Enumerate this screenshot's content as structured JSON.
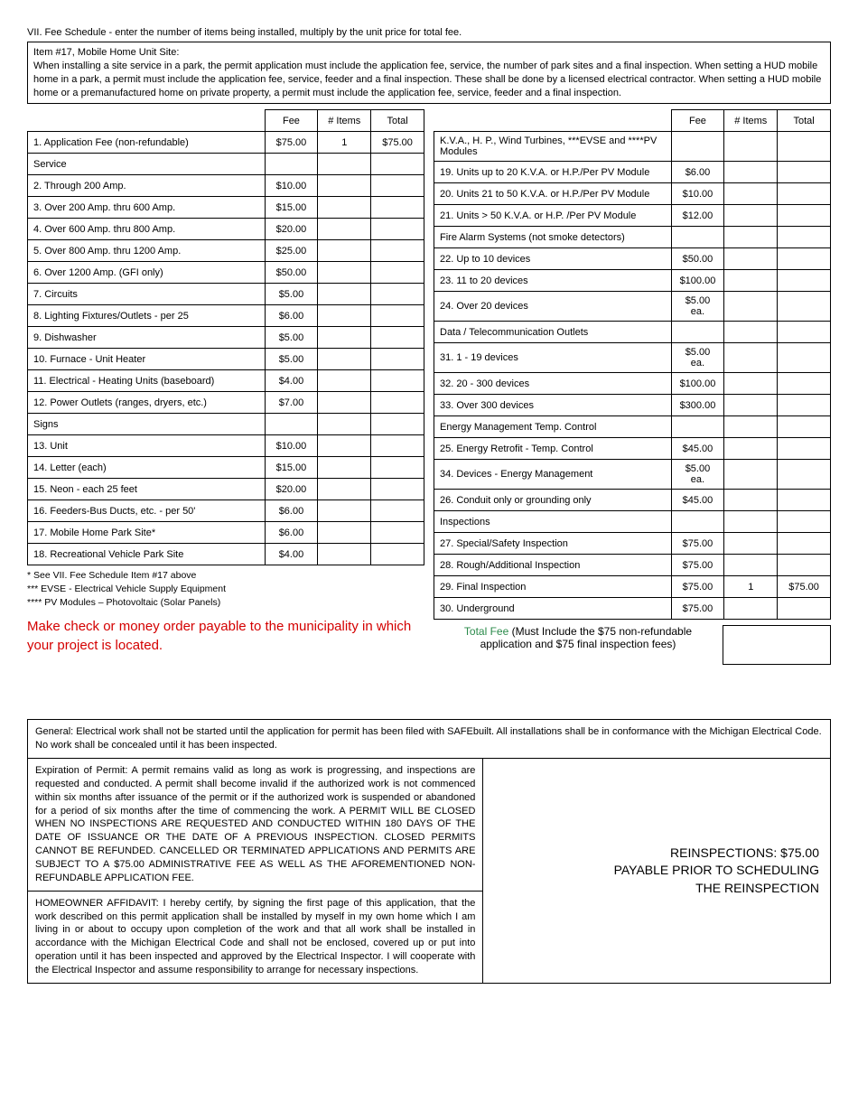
{
  "header": {
    "section_title": "VII. Fee Schedule - enter the number of items being installed, multiply by the unit price for total fee.",
    "item17_title": "Item #17, Mobile Home Unit Site:",
    "item17_body": "When installing a site service in a park, the permit application must include the application fee, service, the number of park sites and a final inspection. When setting a HUD mobile home in a park, a permit must include the application fee, service, feeder and a final inspection.  These shall be done by a licensed electrical contractor.  When setting a HUD mobile home or a premanufactured home on private property, a permit must include the application fee, service, feeder and a final inspection."
  },
  "table_headers": {
    "fee": "Fee",
    "items": "# Items",
    "total": "Total"
  },
  "left_rows": [
    {
      "label": "1. Application Fee (non-refundable)",
      "fee": "$75.00",
      "items": "1",
      "total": "$75.00"
    },
    {
      "label": "Service",
      "fee": "",
      "items": "",
      "total": ""
    },
    {
      "label": "2. Through 200 Amp.",
      "fee": "$10.00",
      "items": "",
      "total": ""
    },
    {
      "label": "3. Over 200 Amp. thru 600 Amp.",
      "fee": "$15.00",
      "items": "",
      "total": ""
    },
    {
      "label": "4. Over 600 Amp. thru 800 Amp.",
      "fee": "$20.00",
      "items": "",
      "total": ""
    },
    {
      "label": "5. Over 800 Amp. thru 1200 Amp.",
      "fee": "$25.00",
      "items": "",
      "total": ""
    },
    {
      "label": "6. Over 1200 Amp. (GFI only)",
      "fee": "$50.00",
      "items": "",
      "total": ""
    },
    {
      "label": "7. Circuits",
      "fee": "$5.00",
      "items": "",
      "total": ""
    },
    {
      "label": "8. Lighting Fixtures/Outlets - per 25",
      "fee": "$6.00",
      "items": "",
      "total": ""
    },
    {
      "label": "9. Dishwasher",
      "fee": "$5.00",
      "items": "",
      "total": ""
    },
    {
      "label": "10. Furnace - Unit Heater",
      "fee": "$5.00",
      "items": "",
      "total": ""
    },
    {
      "label": "11. Electrical - Heating Units (baseboard)",
      "fee": "$4.00",
      "items": "",
      "total": ""
    },
    {
      "label": "12. Power Outlets (ranges, dryers, etc.)",
      "fee": "$7.00",
      "items": "",
      "total": ""
    },
    {
      "label": "Signs",
      "fee": "",
      "items": "",
      "total": ""
    },
    {
      "label": "13. Unit",
      "fee": "$10.00",
      "items": "",
      "total": ""
    },
    {
      "label": "14. Letter (each)",
      "fee": "$15.00",
      "items": "",
      "total": ""
    },
    {
      "label": "15. Neon - each 25 feet",
      "fee": "$20.00",
      "items": "",
      "total": ""
    },
    {
      "label": "16. Feeders-Bus Ducts, etc. - per 50'",
      "fee": "$6.00",
      "items": "",
      "total": ""
    },
    {
      "label": "17. Mobile Home Park Site*",
      "fee": "$6.00",
      "items": "",
      "total": ""
    },
    {
      "label": "18. Recreational Vehicle Park Site",
      "fee": "$4.00",
      "items": "",
      "total": ""
    }
  ],
  "right_rows": [
    {
      "label": "K.V.A., H. P., Wind Turbines, ***EVSE and ****PV Modules",
      "fee": "",
      "items": "",
      "total": ""
    },
    {
      "label": "19. Units up to 20 K.V.A. or H.P./Per PV Module",
      "fee": "$6.00",
      "items": "",
      "total": ""
    },
    {
      "label": "20. Units 21 to 50 K.V.A. or H.P./Per PV Module",
      "fee": "$10.00",
      "items": "",
      "total": ""
    },
    {
      "label": "21. Units > 50 K.V.A. or H.P. /Per PV Module",
      "fee": "$12.00",
      "items": "",
      "total": ""
    },
    {
      "label": "Fire Alarm Systems (not smoke detectors)",
      "fee": "",
      "items": "",
      "total": "",
      "sub": true
    },
    {
      "label": "22. Up to 10 devices",
      "fee": "$50.00",
      "items": "",
      "total": ""
    },
    {
      "label": "23. 11 to 20 devices",
      "fee": "$100.00",
      "items": "",
      "total": ""
    },
    {
      "label": "24. Over 20 devices",
      "fee": "$5.00 ea.",
      "items": "",
      "total": ""
    },
    {
      "label": "Data / Telecommunication Outlets",
      "fee": "",
      "items": "",
      "total": ""
    },
    {
      "label": "31. 1 - 19 devices",
      "fee": "$5.00 ea.",
      "items": "",
      "total": ""
    },
    {
      "label": "32. 20 - 300 devices",
      "fee": "$100.00",
      "items": "",
      "total": ""
    },
    {
      "label": "33. Over 300 devices",
      "fee": "$300.00",
      "items": "",
      "total": ""
    },
    {
      "label": "Energy Management Temp. Control",
      "fee": "",
      "items": "",
      "total": ""
    },
    {
      "label": "25. Energy Retrofit - Temp. Control",
      "fee": "$45.00",
      "items": "",
      "total": ""
    },
    {
      "label": "34. Devices - Energy Management",
      "fee": "$5.00 ea.",
      "items": "",
      "total": ""
    },
    {
      "label": "26. Conduit only or grounding only",
      "fee": "$45.00",
      "items": "",
      "total": ""
    },
    {
      "label": "Inspections",
      "fee": "",
      "items": "",
      "total": ""
    },
    {
      "label": "27. Special/Safety Inspection",
      "fee": "$75.00",
      "items": "",
      "total": ""
    },
    {
      "label": "28. Rough/Additional Inspection",
      "fee": "$75.00",
      "items": "",
      "total": ""
    },
    {
      "label": "29. Final Inspection",
      "fee": "$75.00",
      "items": "1",
      "total": "$75.00"
    },
    {
      "label": "30. Underground",
      "fee": "$75.00",
      "items": "",
      "total": ""
    }
  ],
  "footnotes": {
    "l1": "*       See VII. Fee Schedule Item #17 above",
    "l2": "*** EVSE - Electrical Vehicle Supply Equipment",
    "l3": "**** PV Modules – Photovoltaic (Solar Panels)"
  },
  "payable": "Make check or money order payable to the municipality in which your project is located.",
  "total_fee": {
    "green": "Total Fee",
    "rest": " (Must Include the $75 non-refundable application and $75 final inspection fees)"
  },
  "lower": {
    "general": "General: Electrical work shall not be started until the application for permit has been filed with SAFEbuilt. All installations shall be in conformance with the Michigan Electrical Code. No work shall be concealed until it has been inspected.",
    "expiration": "Expiration of Permit: A permit remains valid as long as work is progressing, and inspections are requested and conducted. A permit shall become invalid if the authorized work is not commenced within six months after issuance of the permit or if the authorized work is suspended or abandoned for a period of six months after the time of commencing the work. A PERMIT WILL BE CLOSED WHEN NO INSPECTIONS ARE REQUESTED AND CONDUCTED WITHIN 180 DAYS OF THE DATE OF ISSUANCE OR THE DATE OF A PREVIOUS INSPECTION. CLOSED PERMITS CANNOT BE REFUNDED. CANCELLED OR TERMINATED APPLICATIONS AND PERMITS ARE SUBJECT TO A $75.00 ADMINISTRATIVE FEE AS WELL AS THE AFOREMENTIONED NON-REFUNDABLE APPLICATION FEE.",
    "affidavit": "HOMEOWNER AFFIDAVIT: I hereby certify, by signing the first page of this application, that the work described on this permit application shall be installed by myself in my own home which I am living in or about to occupy upon completion of the work and that all work shall be installed in accordance with the Michigan Electrical Code and shall not be enclosed, covered up or put into operation until it has been inspected and approved by the Electrical Inspector. I will cooperate with the Electrical Inspector and assume responsibility to arrange for necessary inspections.",
    "reinspection_l1": "REINSPECTIONS: $75.00",
    "reinspection_l2": "PAYABLE PRIOR TO SCHEDULING",
    "reinspection_l3": "THE REINSPECTION"
  }
}
